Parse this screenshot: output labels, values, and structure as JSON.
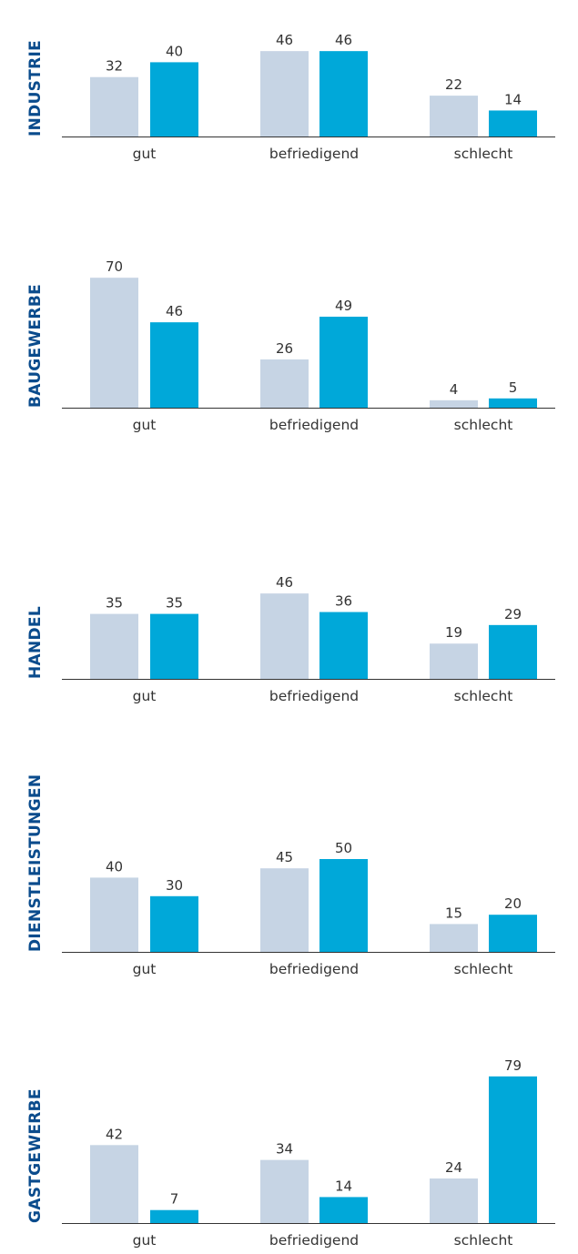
{
  "colors": {
    "series_1": "#c6d4e4",
    "series_2": "#00a8d9",
    "sector_label": "#0a4b8c",
    "axis": "#333333"
  },
  "chart_data": [
    {
      "type": "bar",
      "title": "INDUSTRIE",
      "categories": [
        "gut",
        "befriedigend",
        "schlecht"
      ],
      "series": [
        {
          "values": [
            32,
            46,
            22
          ]
        },
        {
          "values": [
            40,
            46,
            14
          ]
        }
      ],
      "ylim": [
        0,
        80
      ],
      "grid": false
    },
    {
      "type": "bar",
      "title": "BAUGEWERBE",
      "categories": [
        "gut",
        "befriedigend",
        "schlecht"
      ],
      "series": [
        {
          "values": [
            70,
            26,
            4
          ]
        },
        {
          "values": [
            46,
            49,
            5
          ]
        }
      ],
      "ylim": [
        0,
        80
      ],
      "grid": false
    },
    {
      "type": "bar",
      "title": "HANDEL",
      "categories": [
        "gut",
        "befriedigend",
        "schlecht"
      ],
      "series": [
        {
          "values": [
            35,
            46,
            19
          ]
        },
        {
          "values": [
            35,
            36,
            29
          ]
        }
      ],
      "ylim": [
        0,
        80
      ],
      "grid": false
    },
    {
      "type": "bar",
      "title": "DIENSTLEISTUNGEN",
      "categories": [
        "gut",
        "befriedigend",
        "schlecht"
      ],
      "series": [
        {
          "values": [
            40,
            45,
            15
          ]
        },
        {
          "values": [
            30,
            50,
            20
          ]
        }
      ],
      "ylim": [
        0,
        80
      ],
      "grid": false
    },
    {
      "type": "bar",
      "title": "GASTGEWERBE",
      "categories": [
        "gut",
        "befriedigend",
        "schlecht"
      ],
      "series": [
        {
          "values": [
            42,
            34,
            24
          ]
        },
        {
          "values": [
            7,
            14,
            79
          ]
        }
      ],
      "ylim": [
        0,
        80
      ],
      "grid": false
    }
  ]
}
